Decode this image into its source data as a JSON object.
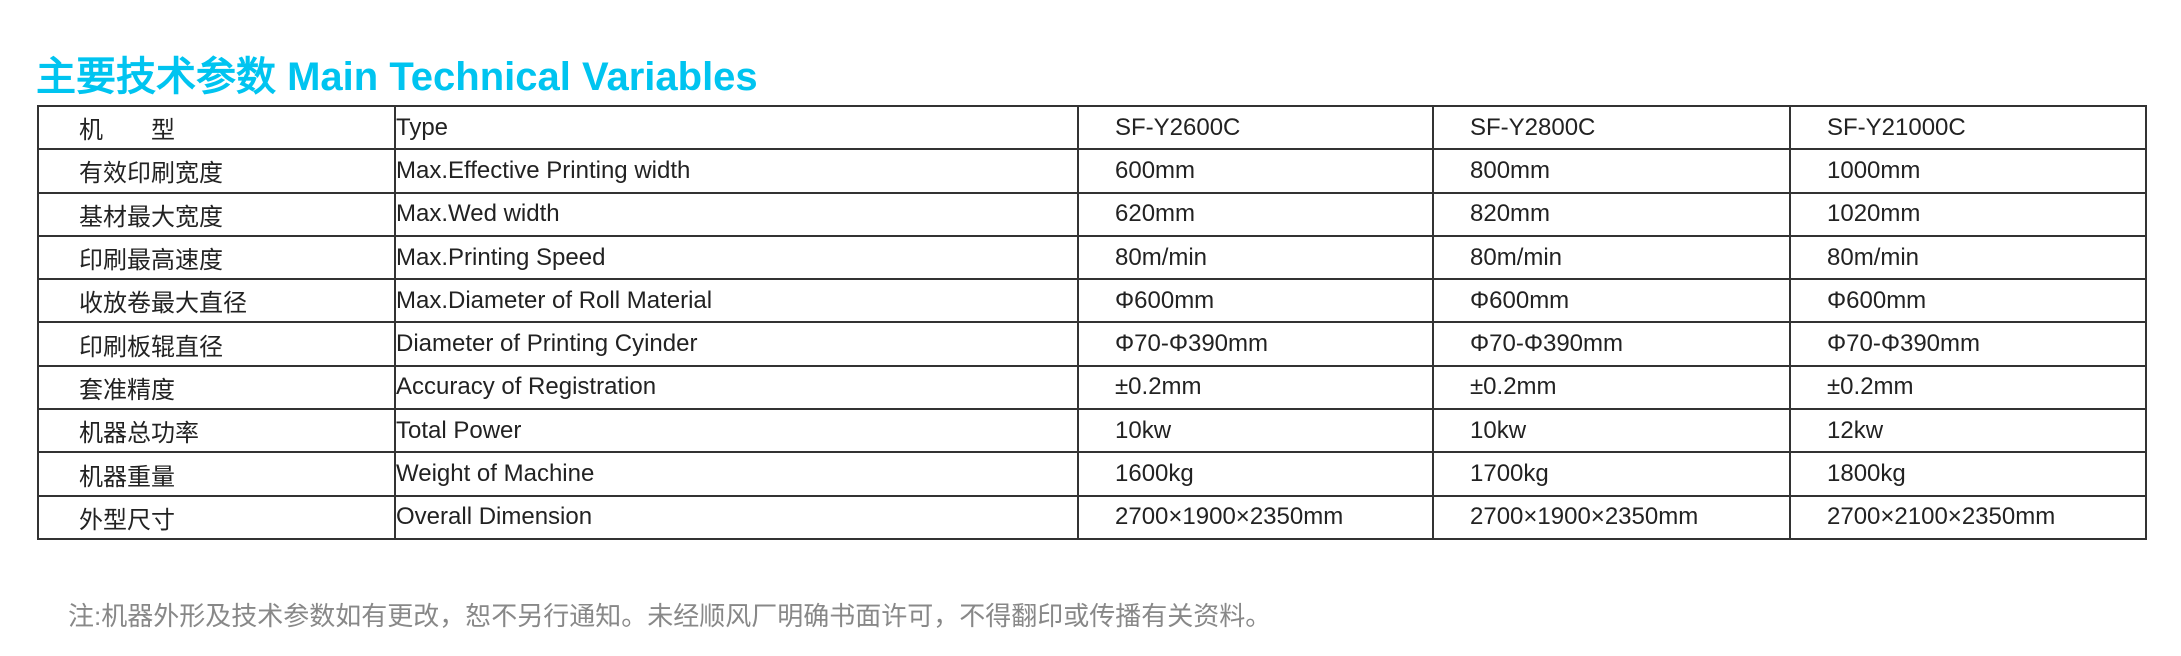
{
  "title": "主要技术参数 Main Technical Variables",
  "accent_color": "#00c4f0",
  "table": {
    "rows": [
      [
        "机　　型",
        "Type",
        "SF-Y2600C",
        "SF-Y2800C",
        "SF-Y21000C"
      ],
      [
        "有效印刷宽度",
        "Max.Effective Printing width",
        "600mm",
        "800mm",
        "1000mm"
      ],
      [
        "基材最大宽度",
        "Max.Wed width",
        "620mm",
        "820mm",
        "1020mm"
      ],
      [
        "印刷最高速度",
        "Max.Printing Speed",
        "80m/min",
        "80m/min",
        "80m/min"
      ],
      [
        "收放卷最大直径",
        "Max.Diameter of Roll Material",
        "Φ600mm",
        "Φ600mm",
        "Φ600mm"
      ],
      [
        "印刷板辊直径",
        "Diameter of Printing Cyinder",
        "Φ70-Φ390mm",
        "Φ70-Φ390mm",
        "Φ70-Φ390mm"
      ],
      [
        "套准精度",
        "Accuracy of Registration",
        "±0.2mm",
        "±0.2mm",
        "±0.2mm"
      ],
      [
        "机器总功率",
        "Total Power",
        "10kw",
        "10kw",
        "12kw"
      ],
      [
        "机器重量",
        "Weight of Machine",
        "1600kg",
        "1700kg",
        "1800kg"
      ],
      [
        "外型尺寸",
        "Overall Dimension",
        "2700×1900×2350mm",
        "2700×1900×2350mm",
        "2700×2100×2350mm"
      ]
    ]
  },
  "note": "注:机器外形及技术参数如有更改，恕不另行通知。未经顺风厂明确书面许可，不得翻印或传播有关资料。"
}
